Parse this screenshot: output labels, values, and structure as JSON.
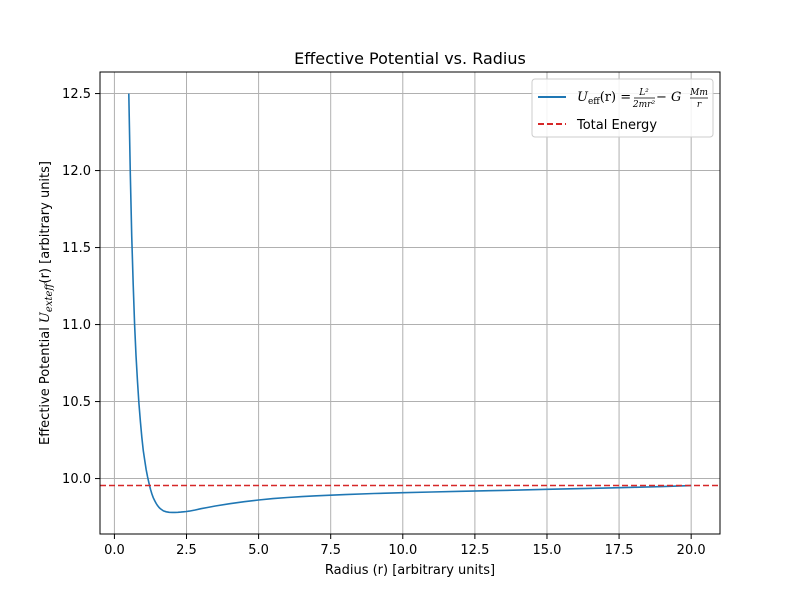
{
  "chart_data": {
    "type": "line",
    "title": "Effective Potential vs. Radius",
    "xlabel": "Radius (r) [arbitrary units]",
    "ylabel": "Effective Potential U_exteff(r) [arbitrary units]",
    "ylabel_parts": {
      "prefix": "Effective Potential ",
      "symbol": "U",
      "subscript": "exteff",
      "arg": "(r)",
      "suffix": " [arbitrary units]"
    },
    "xlim": [
      -0.5,
      21.0
    ],
    "ylim": [
      9.64,
      12.64
    ],
    "x_ticks": [
      0.0,
      2.5,
      5.0,
      7.5,
      10.0,
      12.5,
      15.0,
      17.5,
      20.0
    ],
    "x_tick_labels": [
      "0.0",
      "2.5",
      "5.0",
      "7.5",
      "10.0",
      "12.5",
      "15.0",
      "17.5",
      "20.0"
    ],
    "y_ticks": [
      10.0,
      10.5,
      11.0,
      11.5,
      12.0,
      12.5
    ],
    "y_tick_labels": [
      "10.0",
      "10.5",
      "11.0",
      "11.5",
      "12.0",
      "12.5"
    ],
    "grid": true,
    "legend_placement": "top-right",
    "series": [
      {
        "name": "U_eff(r) = L²/(2mr²) − G Mm/r",
        "legend_parts": {
          "lhs": "U",
          "sub": "eff",
          "arg": "(r) =",
          "frac1_num": "L²",
          "frac1_den": "2mr²",
          "minus": " − G",
          "frac2_num": "Mm",
          "frac2_den": "r"
        },
        "style": "solid",
        "color": "#1f77b4",
        "x": [
          0.5,
          0.55,
          0.6,
          0.65,
          0.7,
          0.75,
          0.8,
          0.85,
          0.9,
          0.95,
          1.0,
          1.05,
          1.1,
          1.15,
          1.2,
          1.25,
          1.3,
          1.35,
          1.4,
          1.45,
          1.5,
          1.55,
          1.6,
          1.7,
          1.8,
          1.9,
          2.0,
          2.1,
          2.2,
          2.3,
          2.4,
          2.5,
          2.6,
          2.8,
          3.0,
          3.25,
          3.5,
          4.0,
          4.5,
          5.0,
          5.5,
          6.0,
          6.5,
          7.0,
          7.5,
          8.0,
          9.0,
          10.0,
          11.0,
          12.0,
          13.0,
          14.0,
          15.0,
          16.0,
          17.0,
          18.0,
          19.0,
          20.0
        ],
        "y": [
          12.5,
          11.98,
          11.58,
          11.26,
          11.0,
          10.8,
          10.63,
          10.49,
          10.37,
          10.27,
          10.18,
          10.12,
          10.06,
          10.01,
          9.97,
          9.93,
          9.9,
          9.875,
          9.855,
          9.838,
          9.823,
          9.812,
          9.803,
          9.79,
          9.784,
          9.781,
          9.78,
          9.78,
          9.781,
          9.782,
          9.784,
          9.786,
          9.789,
          9.796,
          9.804,
          9.813,
          9.822,
          9.837,
          9.85,
          9.861,
          9.87,
          9.877,
          9.883,
          9.888,
          9.892,
          9.896,
          9.903,
          9.908,
          9.913,
          9.917,
          9.921,
          9.925,
          9.93,
          9.934,
          9.938,
          9.943,
          9.948,
          9.954
        ]
      },
      {
        "name": "Total Energy",
        "style": "dashed",
        "color": "#d62728",
        "constant_y": 9.955
      }
    ]
  }
}
